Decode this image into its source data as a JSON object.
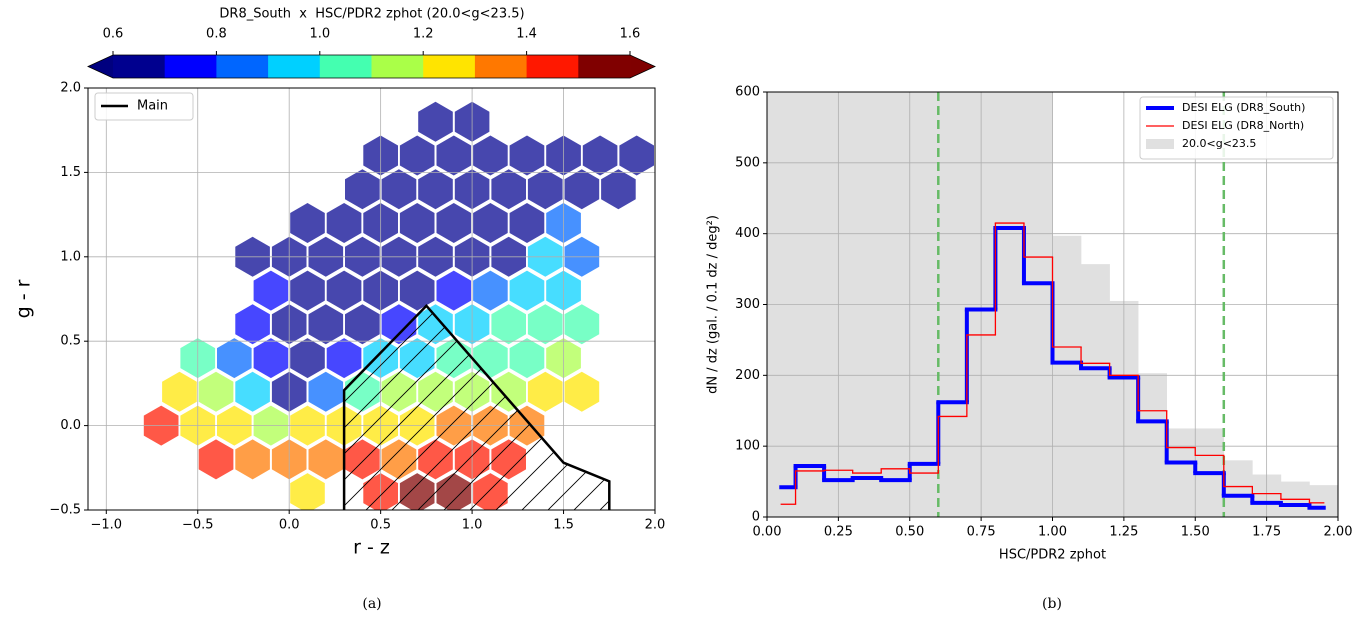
{
  "chart_data": [
    {
      "type": "hexbin",
      "xlabel": "r - z",
      "ylabel": "g - r",
      "xlim": [
        -1.1,
        2.0
      ],
      "ylim": [
        -0.5,
        2.0
      ],
      "xticks": [
        {
          "value": -1,
          "label": "−1.0"
        },
        {
          "value": -0.5,
          "label": "−0.5"
        },
        {
          "value": 0,
          "label": "0.0"
        },
        0.5,
        {
          "value": 1,
          "label": "1.0"
        },
        1.5,
        {
          "value": 2,
          "label": "2.0"
        }
      ],
      "yticks": [
        {
          "value": -0.5,
          "label": "−0.5"
        },
        {
          "value": 0,
          "label": "0.0"
        },
        0.5,
        {
          "value": 1,
          "label": "1.0"
        },
        1.5,
        {
          "value": 2,
          "label": "2.0"
        }
      ],
      "grid": true,
      "legend": "upper left",
      "colorbar": {
        "label": "DR8_South  x  HSC/PDR2 zphot (20.0<g<23.5)",
        "boundaries": [
          0.6,
          0.7,
          0.8,
          0.9,
          1.0,
          1.1,
          1.2,
          1.3,
          1.4,
          1.5,
          1.6
        ],
        "colors": [
          "#00008f",
          "#0000ff",
          "#0066ff",
          "#00d0ff",
          "#44ffb0",
          "#aaff48",
          "#ffe400",
          "#ff7800",
          "#ff1800",
          "#800000"
        ],
        "under_color": "#00007f",
        "over_color": "#7f0000",
        "ticks": [
          0.6,
          0.8,
          {
            "value": 1,
            "label": "1.0"
          },
          1.2,
          1.4,
          1.6
        ]
      },
      "cells": [
        [
          0.8,
          1.8,
          0.65
        ],
        [
          1.0,
          1.8,
          0.65
        ],
        [
          0.5,
          1.6,
          0.65
        ],
        [
          0.7,
          1.6,
          0.65
        ],
        [
          0.9,
          1.6,
          0.65
        ],
        [
          1.1,
          1.6,
          0.65
        ],
        [
          1.3,
          1.6,
          0.65
        ],
        [
          1.5,
          1.6,
          0.65
        ],
        [
          1.7,
          1.6,
          0.65
        ],
        [
          1.9,
          1.6,
          0.65
        ],
        [
          0.4,
          1.4,
          0.65
        ],
        [
          0.6,
          1.4,
          0.65
        ],
        [
          0.8,
          1.4,
          0.65
        ],
        [
          1.0,
          1.4,
          0.65
        ],
        [
          1.2,
          1.4,
          0.65
        ],
        [
          1.4,
          1.4,
          0.65
        ],
        [
          1.6,
          1.4,
          0.65
        ],
        [
          1.8,
          1.4,
          0.65
        ],
        [
          0.1,
          1.2,
          0.65
        ],
        [
          0.3,
          1.2,
          0.65
        ],
        [
          0.5,
          1.2,
          0.65
        ],
        [
          0.7,
          1.2,
          0.65
        ],
        [
          0.9,
          1.2,
          0.65
        ],
        [
          1.1,
          1.2,
          0.65
        ],
        [
          1.3,
          1.2,
          0.65
        ],
        [
          1.5,
          1.2,
          0.85
        ],
        [
          -0.2,
          1.0,
          0.65
        ],
        [
          0.0,
          1.0,
          0.65
        ],
        [
          0.2,
          1.0,
          0.65
        ],
        [
          0.4,
          1.0,
          0.65
        ],
        [
          0.6,
          1.0,
          0.65
        ],
        [
          0.8,
          1.0,
          0.65
        ],
        [
          1.0,
          1.0,
          0.65
        ],
        [
          1.2,
          1.0,
          0.65
        ],
        [
          1.4,
          1.0,
          0.9
        ],
        [
          1.6,
          1.0,
          0.85
        ],
        [
          -0.1,
          0.8,
          0.7
        ],
        [
          0.1,
          0.8,
          0.65
        ],
        [
          0.3,
          0.8,
          0.65
        ],
        [
          0.5,
          0.8,
          0.65
        ],
        [
          0.7,
          0.8,
          0.65
        ],
        [
          0.9,
          0.8,
          0.75
        ],
        [
          1.1,
          0.8,
          0.85
        ],
        [
          1.3,
          0.8,
          0.95
        ],
        [
          1.5,
          0.8,
          0.95
        ],
        [
          -0.2,
          0.6,
          0.75
        ],
        [
          0.0,
          0.6,
          0.65
        ],
        [
          0.2,
          0.6,
          0.65
        ],
        [
          0.4,
          0.6,
          0.65
        ],
        [
          0.6,
          0.6,
          0.75
        ],
        [
          0.8,
          0.6,
          0.95
        ],
        [
          1.0,
          0.6,
          0.95
        ],
        [
          1.2,
          0.6,
          1.0
        ],
        [
          1.4,
          0.6,
          1.0
        ],
        [
          1.6,
          0.6,
          1.05
        ],
        [
          -0.5,
          0.4,
          1.0
        ],
        [
          -0.3,
          0.4,
          0.85
        ],
        [
          -0.1,
          0.4,
          0.7
        ],
        [
          0.1,
          0.4,
          0.65
        ],
        [
          0.3,
          0.4,
          0.75
        ],
        [
          0.5,
          0.4,
          0.95
        ],
        [
          0.7,
          0.4,
          0.95
        ],
        [
          0.9,
          0.4,
          1.05
        ],
        [
          1.1,
          0.4,
          1.05
        ],
        [
          1.3,
          0.4,
          1.0
        ],
        [
          1.5,
          0.4,
          1.1
        ],
        [
          -0.6,
          0.2,
          1.2
        ],
        [
          -0.4,
          0.2,
          1.15
        ],
        [
          -0.2,
          0.2,
          0.9
        ],
        [
          0.0,
          0.2,
          0.65
        ],
        [
          0.2,
          0.2,
          0.85
        ],
        [
          0.4,
          0.2,
          1.05
        ],
        [
          0.6,
          0.2,
          1.1
        ],
        [
          0.8,
          0.2,
          1.15
        ],
        [
          1.0,
          0.2,
          1.15
        ],
        [
          1.2,
          0.2,
          1.15
        ],
        [
          1.4,
          0.2,
          1.2
        ],
        [
          1.6,
          0.2,
          1.25
        ],
        [
          -0.7,
          0.0,
          1.4
        ],
        [
          -0.5,
          0.0,
          1.25
        ],
        [
          -0.3,
          0.0,
          1.2
        ],
        [
          -0.1,
          0.0,
          1.15
        ],
        [
          0.1,
          0.0,
          1.2
        ],
        [
          0.3,
          0.0,
          1.25
        ],
        [
          0.5,
          0.0,
          1.25
        ],
        [
          0.7,
          0.0,
          1.25
        ],
        [
          0.9,
          0.0,
          1.3
        ],
        [
          1.1,
          0.0,
          1.3
        ],
        [
          1.3,
          0.0,
          1.35
        ],
        [
          -0.4,
          -0.2,
          1.45
        ],
        [
          -0.2,
          -0.2,
          1.35
        ],
        [
          0.0,
          -0.2,
          1.3
        ],
        [
          0.2,
          -0.2,
          1.35
        ],
        [
          0.4,
          -0.2,
          1.4
        ],
        [
          0.6,
          -0.2,
          1.35
        ],
        [
          0.8,
          -0.2,
          1.4
        ],
        [
          1.0,
          -0.2,
          1.45
        ],
        [
          1.2,
          -0.2,
          1.4
        ],
        [
          0.1,
          -0.4,
          1.25
        ],
        [
          0.5,
          -0.4,
          1.45
        ],
        [
          0.7,
          -0.4,
          1.5
        ],
        [
          0.9,
          -0.4,
          1.5
        ],
        [
          1.1,
          -0.4,
          1.45
        ]
      ],
      "selection": {
        "name": "Main",
        "color": "#000000",
        "x": [
          0.3,
          0.3,
          0.75,
          1.5,
          1.75,
          1.75
        ],
        "y": [
          -0.5,
          0.21,
          0.71,
          -0.22,
          -0.33,
          -0.5
        ]
      }
    },
    {
      "type": "step",
      "xlabel": "HSC/PDR2 zphot",
      "ylabel": "dN / dz (gal. / 0.1 dz / deg²)",
      "xlim": [
        0,
        2
      ],
      "ylim": [
        0,
        600
      ],
      "xticks": [
        {
          "value": 0,
          "label": "0.00"
        },
        0.25,
        {
          "value": 0.5,
          "label": "0.50"
        },
        0.75,
        {
          "value": 1,
          "label": "1.00"
        },
        1.25,
        {
          "value": 1.5,
          "label": "1.50"
        },
        1.75,
        {
          "value": 2,
          "label": "2.00"
        }
      ],
      "yticks": [
        0,
        100,
        200,
        300,
        400,
        500,
        600
      ],
      "grid": true,
      "legend": "upper right",
      "x": [
        0.05,
        0.15,
        0.25,
        0.35,
        0.45,
        0.55,
        0.65,
        0.75,
        0.85,
        0.95,
        1.05,
        1.15,
        1.25,
        1.35,
        1.45,
        1.55,
        1.65,
        1.75,
        1.85,
        1.95
      ],
      "series": [
        {
          "name": "DESI ELG (DR8_South)",
          "color": "#0000ff",
          "width": 4,
          "values": [
            42,
            72,
            52,
            55,
            52,
            75,
            162,
            293,
            408,
            330,
            218,
            210,
            197,
            135,
            77,
            62,
            30,
            20,
            17,
            13
          ]
        },
        {
          "name": "DESI ELG (DR8_North)",
          "color": "#ff0000",
          "width": 1.3,
          "values": [
            18,
            65,
            66,
            62,
            68,
            62,
            142,
            257,
            415,
            367,
            240,
            217,
            200,
            150,
            98,
            87,
            43,
            33,
            25,
            20
          ]
        }
      ],
      "hist": {
        "name": "20.0<g<23.5",
        "color": "#e0e0e0",
        "bins": [
          0,
          0.1,
          0.2,
          0.3,
          0.4,
          0.5,
          0.6,
          0.7,
          0.8,
          0.9,
          1.0,
          1.1,
          1.2,
          1.3,
          1.4,
          1.5,
          1.6,
          1.7,
          1.8,
          1.9,
          2.0
        ],
        "counts": [
          620,
          650,
          700,
          750,
          800,
          850,
          850,
          800,
          700,
          650,
          397,
          357,
          305,
          203,
          125,
          125,
          80,
          60,
          50,
          45
        ]
      },
      "vlines": {
        "x": [
          0.6,
          1.6
        ],
        "color": "#66bb66"
      }
    }
  ],
  "captions": [
    "(a)",
    "(b)"
  ]
}
